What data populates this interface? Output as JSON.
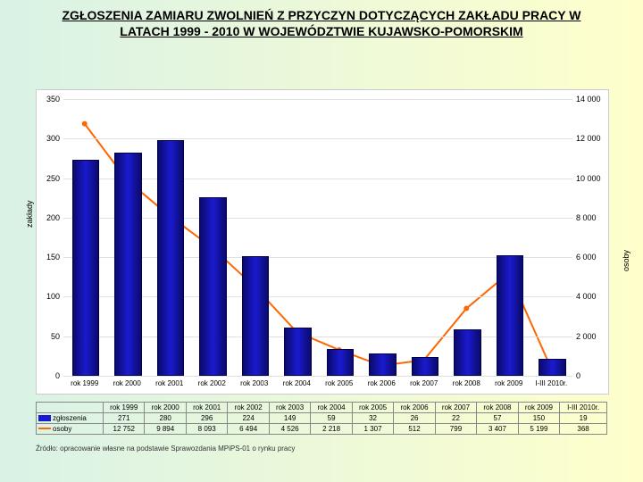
{
  "title": "ZGŁOSZENIA ZAMIARU ZWOLNIEŃ Z PRZYCZYN DOTYCZĄCYCH ZAKŁADU PRACY W LATACH 1999 - 2010 W WOJEWÓDZTWIE KUJAWSKO-POMORSKIM",
  "background_gradient": {
    "from": "#d9f2e6",
    "to": "#ffffcc"
  },
  "chart": {
    "type": "bar+line",
    "categories": [
      "rok 1999",
      "rok 2000",
      "rok 2001",
      "rok 2002",
      "rok 2003",
      "rok 2004",
      "rok 2005",
      "rok 2006",
      "rok 2007",
      "rok 2008",
      "rok 2009",
      "I-III 2010r."
    ],
    "bars": {
      "series_name": "zgłoszenia",
      "values": [
        271,
        280,
        296,
        224,
        149,
        59,
        32,
        26,
        22,
        57,
        150,
        19
      ],
      "color": "#1a1ad0",
      "border_color": "#000050",
      "bar_width_frac": 0.6
    },
    "line": {
      "series_name": "osoby",
      "values": [
        12752,
        9894,
        8093,
        6494,
        4526,
        2218,
        1307,
        512,
        799,
        3407,
        5199,
        368
      ],
      "color": "#ff6600",
      "marker": "circle",
      "marker_size": 5,
      "line_width": 2
    },
    "y_left": {
      "label": "zakłady",
      "min": 0,
      "max": 350,
      "step": 50,
      "ticks": [
        0,
        50,
        100,
        150,
        200,
        250,
        300,
        350
      ]
    },
    "y_right": {
      "label": "osoby",
      "min": 0,
      "max": 14000,
      "step": 2000,
      "ticks": [
        "0",
        "2 000",
        "4 000",
        "6 000",
        "8 000",
        "10 000",
        "12 000",
        "14 000"
      ]
    },
    "grid_color": "#e0e0e0",
    "plot_bg": "#ffffff"
  },
  "table": {
    "row1_label": "zgłoszenia",
    "row1_values": [
      "271",
      "280",
      "296",
      "224",
      "149",
      "59",
      "32",
      "26",
      "22",
      "57",
      "150",
      "19"
    ],
    "row2_label": "osoby",
    "row2_values": [
      "12 752",
      "9 894",
      "8 093",
      "6 494",
      "4 526",
      "2 218",
      "1 307",
      "512",
      "799",
      "3 407",
      "5 199",
      "368"
    ],
    "swatch1_color": "#1a1ad0",
    "swatch2_color": "#ff6600"
  },
  "footnote": "Źródło: opracowanie własne na podstawie Sprawozdania MPiPS-01 o rynku pracy"
}
